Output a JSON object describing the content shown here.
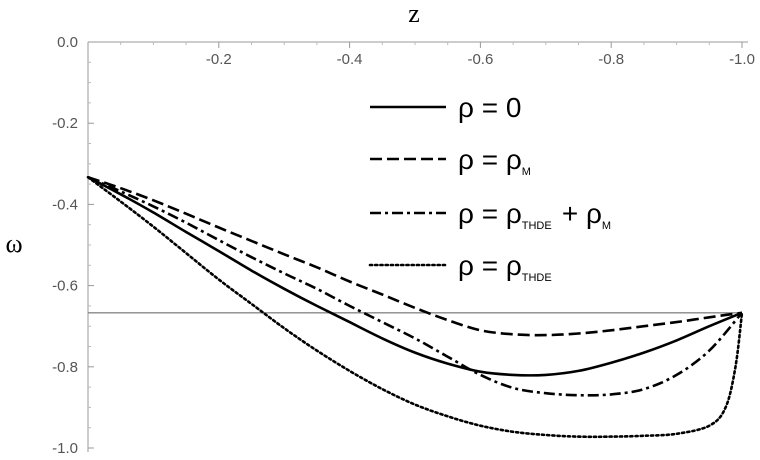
{
  "chart_data": {
    "type": "line",
    "xlabel": "z",
    "ylabel": "ω",
    "xlim": [
      0.0,
      -1.0
    ],
    "ylim": [
      -1.0,
      0.0
    ],
    "x_axis_position": "top",
    "x_ticks": [
      -0.2,
      -0.4,
      -0.6,
      -0.8,
      -1.0
    ],
    "x_tick_labels": [
      "-0.2",
      "-0.4",
      "-0.6",
      "-0.8",
      "-1.0"
    ],
    "y_ticks": [
      0.0,
      -0.2,
      -0.4,
      -0.6,
      -0.8,
      -1.0
    ],
    "y_tick_labels": [
      "0.0",
      "-0.2",
      "-0.4",
      "-0.6",
      "-0.8",
      "-1.0"
    ],
    "reference_line": {
      "y": -0.667,
      "color": "#888888"
    },
    "legend": {
      "placement": "upper-right"
    },
    "series": [
      {
        "label_parts": [
          "ρ = 0"
        ],
        "subscripts": [],
        "style": "solid",
        "x": [
          0.0,
          -0.05,
          -0.1,
          -0.15,
          -0.2,
          -0.25,
          -0.3,
          -0.35,
          -0.4,
          -0.45,
          -0.5,
          -0.55,
          -0.6,
          -0.65,
          -0.7,
          -0.75,
          -0.8,
          -0.85,
          -0.9,
          -0.95,
          -1.0
        ],
        "y": [
          -0.333,
          -0.375,
          -0.42,
          -0.468,
          -0.515,
          -0.563,
          -0.608,
          -0.65,
          -0.69,
          -0.73,
          -0.765,
          -0.792,
          -0.812,
          -0.82,
          -0.82,
          -0.81,
          -0.79,
          -0.765,
          -0.735,
          -0.7,
          -0.667
        ]
      },
      {
        "label_parts": [
          "ρ = ρ",
          ""
        ],
        "subscripts": [
          "M"
        ],
        "style": "dashed",
        "x": [
          0.0,
          -0.05,
          -0.1,
          -0.15,
          -0.2,
          -0.25,
          -0.3,
          -0.35,
          -0.4,
          -0.45,
          -0.5,
          -0.55,
          -0.6,
          -0.65,
          -0.7,
          -0.75,
          -0.8,
          -0.85,
          -0.9,
          -0.95,
          -1.0
        ],
        "y": [
          -0.333,
          -0.36,
          -0.39,
          -0.423,
          -0.457,
          -0.49,
          -0.523,
          -0.555,
          -0.59,
          -0.622,
          -0.655,
          -0.685,
          -0.71,
          -0.72,
          -0.722,
          -0.718,
          -0.71,
          -0.7,
          -0.69,
          -0.678,
          -0.667
        ]
      },
      {
        "label_parts": [
          "ρ = ρ",
          " + ρ",
          ""
        ],
        "subscripts": [
          "THDE",
          "M"
        ],
        "style": "dashdot",
        "x": [
          0.0,
          -0.05,
          -0.1,
          -0.15,
          -0.2,
          -0.25,
          -0.3,
          -0.35,
          -0.4,
          -0.45,
          -0.5,
          -0.55,
          -0.6,
          -0.65,
          -0.7,
          -0.75,
          -0.8,
          -0.85,
          -0.9,
          -0.95,
          -1.0
        ],
        "y": [
          -0.333,
          -0.368,
          -0.405,
          -0.445,
          -0.488,
          -0.53,
          -0.57,
          -0.608,
          -0.65,
          -0.69,
          -0.73,
          -0.775,
          -0.82,
          -0.852,
          -0.865,
          -0.87,
          -0.868,
          -0.855,
          -0.82,
          -0.76,
          -0.667
        ]
      },
      {
        "label_parts": [
          "ρ = ρ",
          ""
        ],
        "subscripts": [
          "THDE"
        ],
        "style": "dotted",
        "x": [
          0.0,
          -0.05,
          -0.1,
          -0.15,
          -0.2,
          -0.25,
          -0.3,
          -0.35,
          -0.4,
          -0.45,
          -0.5,
          -0.55,
          -0.6,
          -0.65,
          -0.7,
          -0.75,
          -0.8,
          -0.85,
          -0.9,
          -0.95,
          -0.975,
          -0.99,
          -1.0
        ],
        "y": [
          -0.333,
          -0.393,
          -0.455,
          -0.52,
          -0.585,
          -0.645,
          -0.705,
          -0.76,
          -0.81,
          -0.855,
          -0.893,
          -0.922,
          -0.945,
          -0.96,
          -0.968,
          -0.972,
          -0.972,
          -0.97,
          -0.965,
          -0.945,
          -0.9,
          -0.8,
          -0.667
        ]
      }
    ]
  }
}
